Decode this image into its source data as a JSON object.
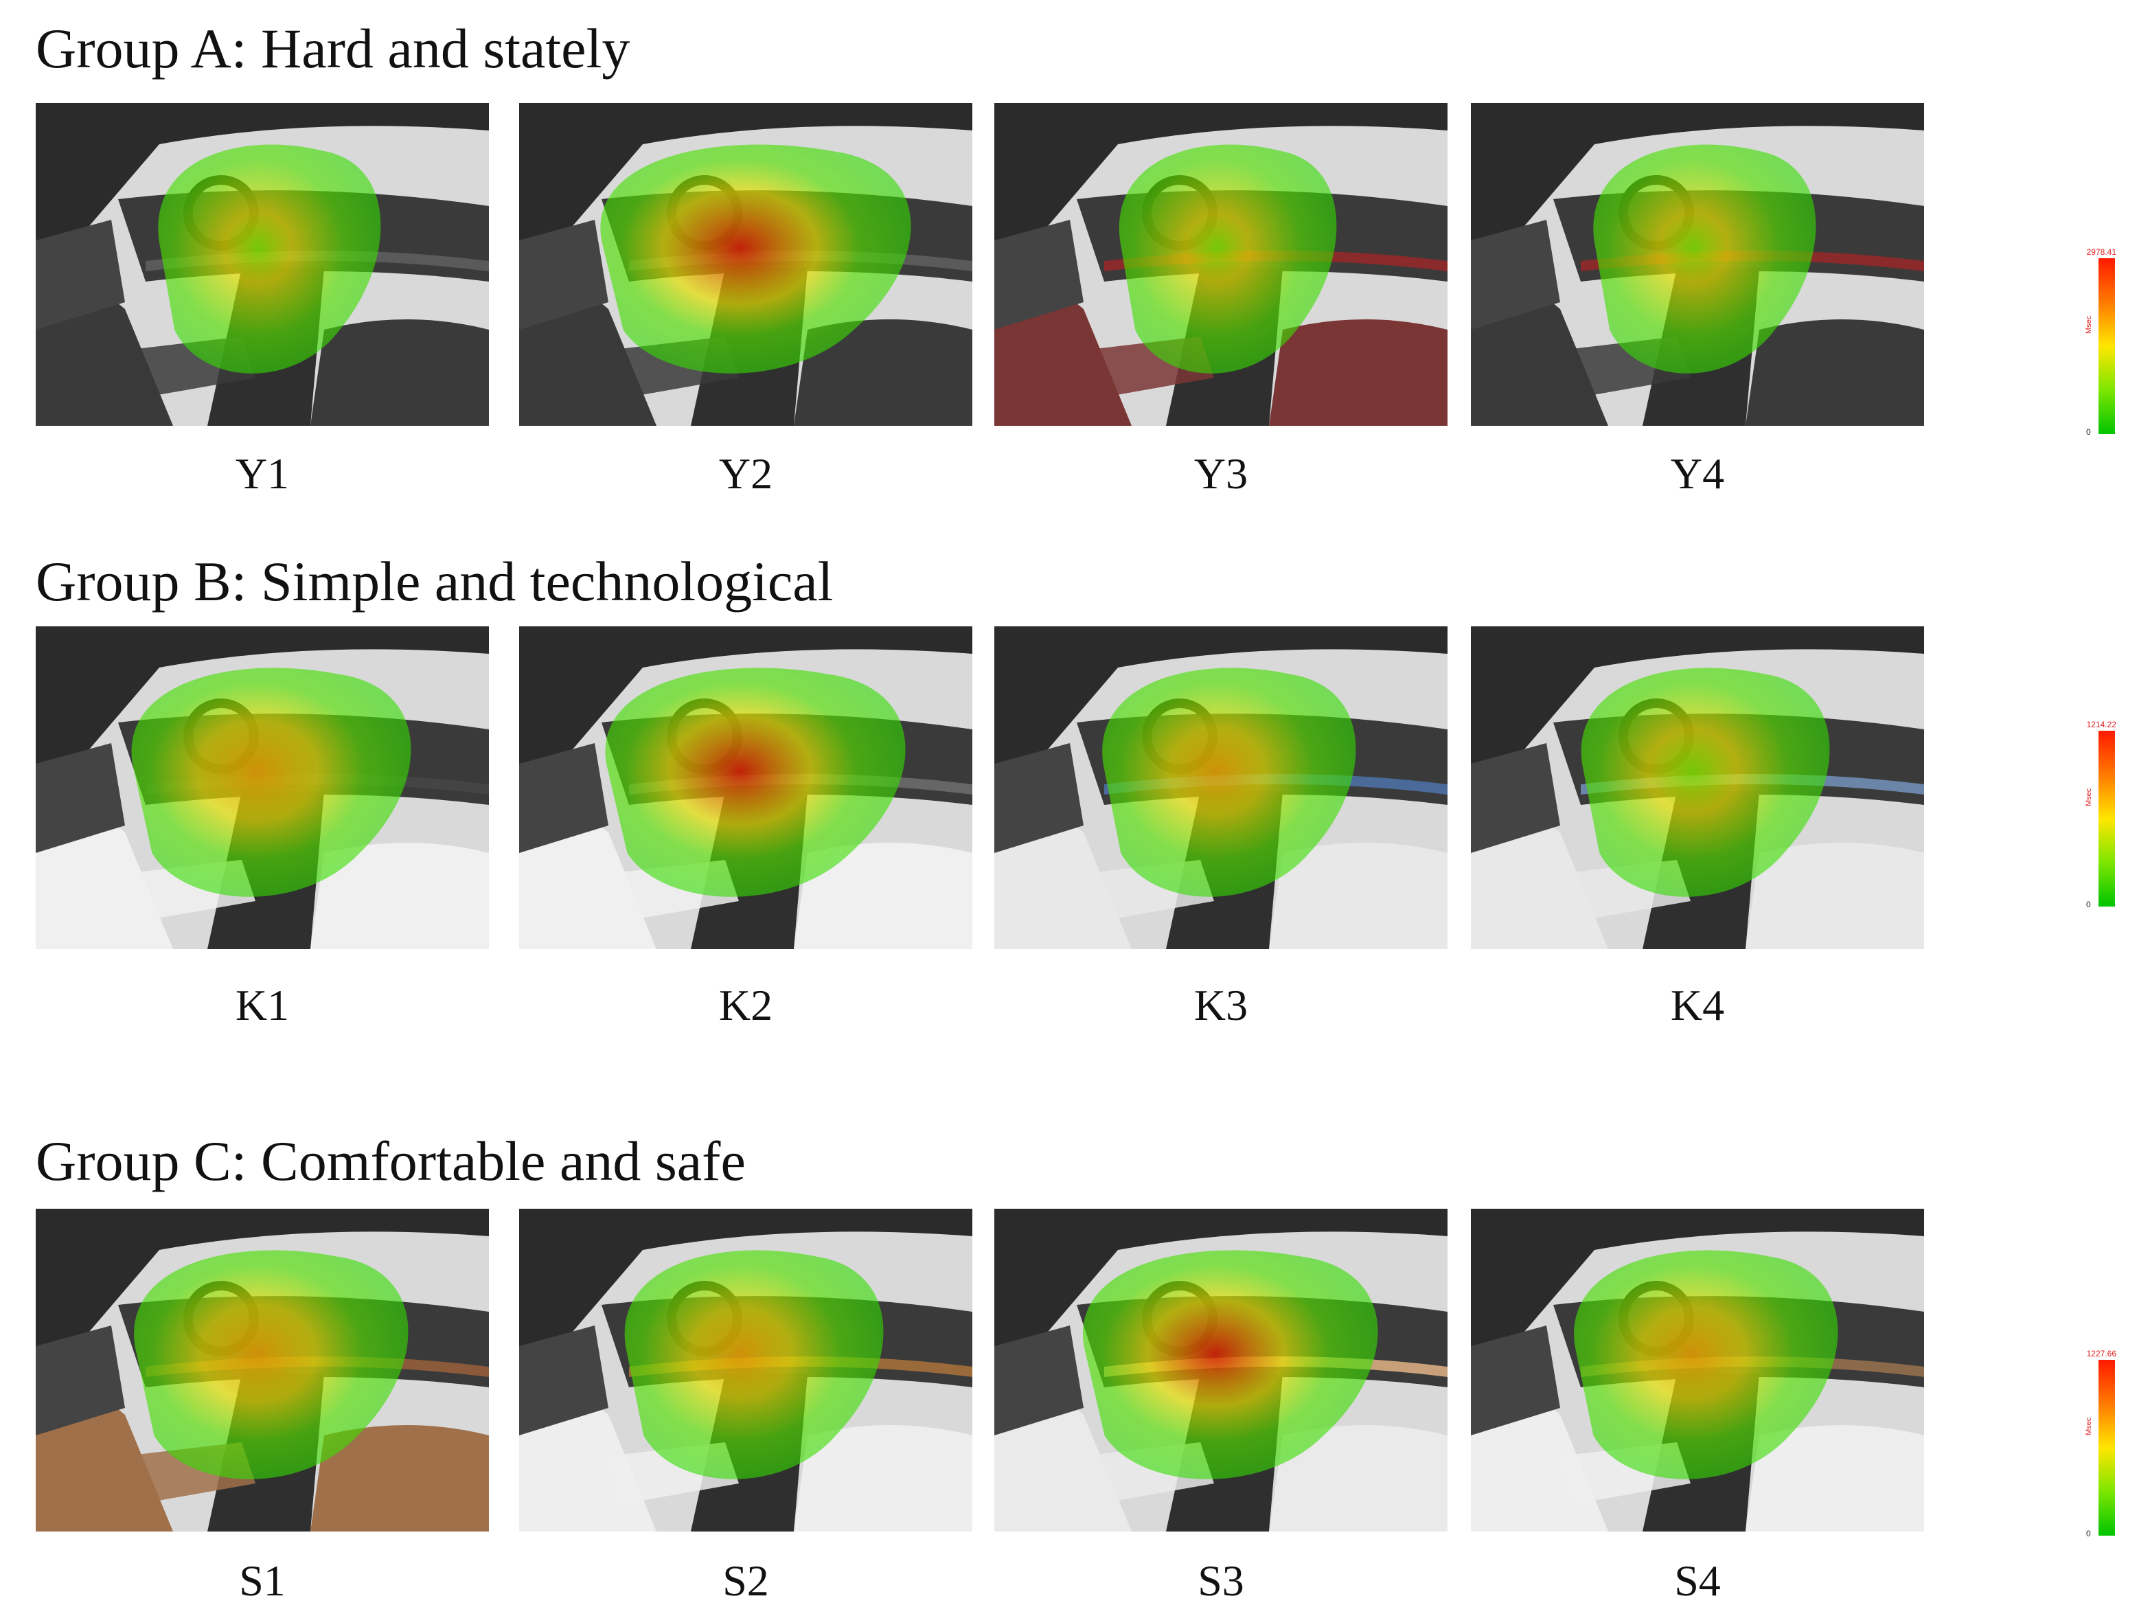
{
  "groups": [
    {
      "title": "Group A: Hard and stately",
      "legend": {
        "max": "2978.41",
        "min": "0",
        "unit": "Msec"
      },
      "panels": [
        {
          "label": "Y1",
          "upholstery": "#3a3a3a",
          "trim": "#5a5a5a",
          "heat_peak": 0.15
        },
        {
          "label": "Y2",
          "upholstery": "#3a3a3a",
          "trim": "#5a5a5a",
          "heat_peak": 1.0
        },
        {
          "label": "Y3",
          "upholstery": "#7a3535",
          "trim": "#8a2a2a",
          "heat_peak": 0.1
        },
        {
          "label": "Y4",
          "upholstery": "#3a3a3a",
          "trim": "#8a2a2a",
          "heat_peak": 0.15
        }
      ]
    },
    {
      "title": "Group B: Simple and technological",
      "legend": {
        "max": "1214.22",
        "min": "0",
        "unit": "Msec"
      },
      "panels": [
        {
          "label": "K1",
          "upholstery": "#f0f0f0",
          "trim": "#444444",
          "heat_peak": 0.7
        },
        {
          "label": "K2",
          "upholstery": "#f0f0f0",
          "trim": "#666666",
          "heat_peak": 0.9
        },
        {
          "label": "K3",
          "upholstery": "#e8e8e8",
          "trim": "#4a6a9a",
          "heat_peak": 0.45
        },
        {
          "label": "K4",
          "upholstery": "#e8e8e8",
          "trim": "#6a85a8",
          "heat_peak": 0.4
        }
      ]
    },
    {
      "title": "Group C: Comfortable and safe",
      "legend": {
        "max": "1227.66",
        "min": "0",
        "unit": "Msec"
      },
      "panels": [
        {
          "label": "S1",
          "upholstery": "#a0704a",
          "trim": "#8a5a3a",
          "heat_peak": 0.65
        },
        {
          "label": "S2",
          "upholstery": "#eeeeee",
          "trim": "#9a6a3a",
          "heat_peak": 0.5
        },
        {
          "label": "S3",
          "upholstery": "#eaeaea",
          "trim": "#c8a07a",
          "heat_peak": 0.85
        },
        {
          "label": "S4",
          "upholstery": "#eeeeee",
          "trim": "#8a6a4a",
          "heat_peak": 0.55
        }
      ]
    }
  ]
}
